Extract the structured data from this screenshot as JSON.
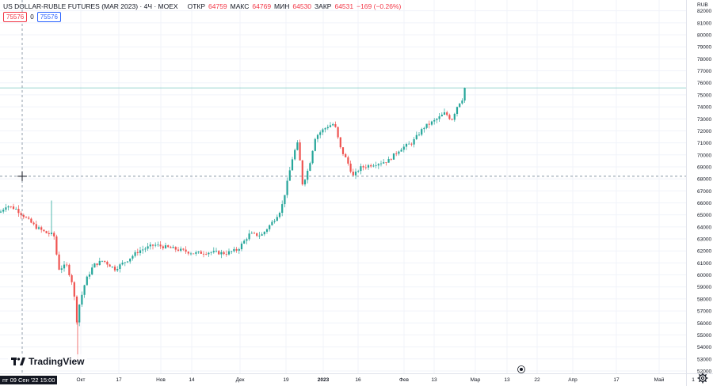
{
  "header": {
    "title": "US DOLLAR-RUBLE FUTURES (MAR 2023) · 4Ч · MOEX",
    "open_label": "ОТКР",
    "open_value": "64759",
    "high_label": "МАКС",
    "high_value": "64769",
    "low_label": "МИН",
    "low_value": "64530",
    "close_label": "ЗАКР",
    "close_value": "64531",
    "change_value": "−169 (−0.26%)"
  },
  "badges": {
    "left": "75576",
    "middle": "0",
    "right": "75576"
  },
  "logo": {
    "text": "TradingView",
    "icon": "tradingview-logo-icon"
  },
  "crosshair": {
    "time_label": "пт 09 Сен '22  15:00",
    "price_label": "68218"
  },
  "colors": {
    "up": "#26a69a",
    "down": "#ef5350",
    "last_price": "#26a69a",
    "crosshair_label": "#131722"
  },
  "chart_data": {
    "type": "candlestick",
    "currency_label": "RUB",
    "last_price": 75576,
    "crosshair_price": 68218,
    "ylim": [
      51800,
      82900
    ],
    "y_ticks": [
      82000,
      81000,
      80000,
      79000,
      78000,
      77000,
      76000,
      75000,
      74000,
      73000,
      72000,
      71000,
      70000,
      69000,
      68000,
      67000,
      66000,
      65000,
      64000,
      63000,
      62000,
      61000,
      60000,
      59000,
      58000,
      57000,
      56000,
      55000,
      54000,
      53000,
      52000
    ],
    "x_ticks": [
      "Окт",
      "17",
      "Нов",
      "14",
      "Дек",
      "19",
      "2023",
      "16",
      "Фев",
      "13",
      "Мар",
      "13",
      "22",
      "Апр",
      "17",
      "Май",
      "1"
    ],
    "grid": true,
    "series_anchors": [
      {
        "x": 0,
        "price": 65200
      },
      {
        "x": 8,
        "price": 65800
      },
      {
        "x": 20,
        "price": 65500
      },
      {
        "x": 30,
        "price": 64900
      },
      {
        "x": 45,
        "price": 64000
      },
      {
        "x": 58,
        "price": 63500
      },
      {
        "x": 68,
        "price": 63300
      },
      {
        "x": 74,
        "price": 60500
      },
      {
        "x": 84,
        "price": 60800
      },
      {
        "x": 92,
        "price": 59200
      },
      {
        "x": 97,
        "price": 56200
      },
      {
        "x": 100,
        "price": 57500
      },
      {
        "x": 108,
        "price": 59500
      },
      {
        "x": 118,
        "price": 60800
      },
      {
        "x": 130,
        "price": 61200
      },
      {
        "x": 145,
        "price": 60500
      },
      {
        "x": 160,
        "price": 61200
      },
      {
        "x": 175,
        "price": 62000
      },
      {
        "x": 195,
        "price": 62500
      },
      {
        "x": 210,
        "price": 62300
      },
      {
        "x": 225,
        "price": 62100
      },
      {
        "x": 245,
        "price": 61800
      },
      {
        "x": 265,
        "price": 61900
      },
      {
        "x": 285,
        "price": 61800
      },
      {
        "x": 300,
        "price": 62100
      },
      {
        "x": 315,
        "price": 63400
      },
      {
        "x": 330,
        "price": 63300
      },
      {
        "x": 345,
        "price": 64500
      },
      {
        "x": 355,
        "price": 65500
      },
      {
        "x": 362,
        "price": 67500
      },
      {
        "x": 370,
        "price": 70000
      },
      {
        "x": 376,
        "price": 71000
      },
      {
        "x": 382,
        "price": 67500
      },
      {
        "x": 390,
        "price": 69000
      },
      {
        "x": 398,
        "price": 71500
      },
      {
        "x": 406,
        "price": 72000
      },
      {
        "x": 414,
        "price": 72400
      },
      {
        "x": 422,
        "price": 72600
      },
      {
        "x": 430,
        "price": 70500
      },
      {
        "x": 438,
        "price": 69500
      },
      {
        "x": 446,
        "price": 68200
      },
      {
        "x": 454,
        "price": 68900
      },
      {
        "x": 470,
        "price": 69200
      },
      {
        "x": 490,
        "price": 69500
      },
      {
        "x": 505,
        "price": 70500
      },
      {
        "x": 520,
        "price": 71000
      },
      {
        "x": 535,
        "price": 72300
      },
      {
        "x": 550,
        "price": 72900
      },
      {
        "x": 562,
        "price": 73500
      },
      {
        "x": 570,
        "price": 72900
      },
      {
        "x": 578,
        "price": 74200
      },
      {
        "x": 584,
        "price": 74700
      },
      {
        "x": 588,
        "price": 75576
      }
    ]
  }
}
